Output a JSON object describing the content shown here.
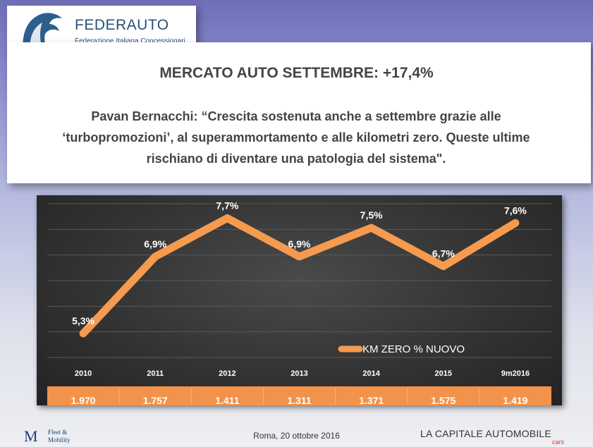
{
  "logo": {
    "title": "FEDERAUTO",
    "subtitle": "Federazione Italiana Concessionari Auto"
  },
  "header": {
    "headline": "MERCATO AUTO SETTEMBRE: +17,4%",
    "quote": "Pavan Bernacchi: “Crescita sostenuta anche a settembre grazie alle ‘turbopromozioni’, al superammortamento e alle kilometri zero. Queste ultime rischiano di diventare una patologia del sistema\"."
  },
  "chart_data": {
    "type": "line",
    "categories": [
      "2010",
      "2011",
      "2012",
      "2013",
      "2014",
      "2015",
      "9m2016"
    ],
    "series": [
      {
        "name": "KM ZERO % NUOVO",
        "values": [
          5.3,
          6.9,
          7.7,
          6.9,
          7.5,
          6.7,
          7.6
        ],
        "labels": [
          "5,3%",
          "6,9%",
          "7,7%",
          "6,9%",
          "7,5%",
          "6,7%",
          "7,6%"
        ]
      }
    ],
    "table_row": [
      "1.970",
      "1.757",
      "1.411",
      "1.311",
      "1.371",
      "1.575",
      "1.419"
    ],
    "ylim": [
      4.8,
      8.0
    ],
    "grid": true,
    "legend": "bottom-right",
    "line_color": "#f59a4f",
    "table_color": "#f3924a"
  },
  "footer": {
    "date": "Roma, 20 ottobre 2016",
    "fm_mark": "M",
    "fm_text": [
      "Fleet &",
      "Mobility"
    ],
    "lca_brand": "LA CAPITALE AUTOMOBILE",
    "lca_sub": "cars"
  }
}
